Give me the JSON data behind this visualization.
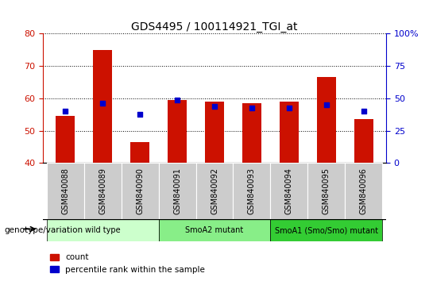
{
  "title": "GDS4495 / 100114921_TGI_at",
  "samples": [
    "GSM840088",
    "GSM840089",
    "GSM840090",
    "GSM840091",
    "GSM840092",
    "GSM840093",
    "GSM840094",
    "GSM840095",
    "GSM840096"
  ],
  "counts": [
    54.5,
    75.0,
    46.5,
    59.5,
    59.0,
    58.5,
    59.0,
    66.5,
    53.5
  ],
  "percentile_ranks_raw": [
    56.0,
    58.5,
    55.0,
    59.5,
    57.5,
    57.0,
    57.0,
    58.0,
    56.0
  ],
  "bar_color": "#cc1100",
  "dot_color": "#0000cc",
  "ylim": [
    40,
    80
  ],
  "yticks": [
    40,
    50,
    60,
    70,
    80
  ],
  "y2lim": [
    0,
    100
  ],
  "y2ticks": [
    0,
    25,
    50,
    75,
    100
  ],
  "groups": [
    {
      "label": "wild type",
      "start": 0,
      "end": 3,
      "color": "#ccffcc"
    },
    {
      "label": "SmoA2 mutant",
      "start": 3,
      "end": 6,
      "color": "#88ee88"
    },
    {
      "label": "SmoA1 (Smo/Smo) mutant",
      "start": 6,
      "end": 9,
      "color": "#33cc33"
    }
  ],
  "legend_count_label": "count",
  "legend_percentile_label": "percentile rank within the sample",
  "genotype_label": "genotype/variation",
  "bar_axis_color": "#cc1100",
  "pct_axis_color": "#0000cc",
  "bg_color": "#ffffff",
  "sample_bg_color": "#cccccc",
  "group_label_fontsize": 8,
  "sample_label_fontsize": 7
}
